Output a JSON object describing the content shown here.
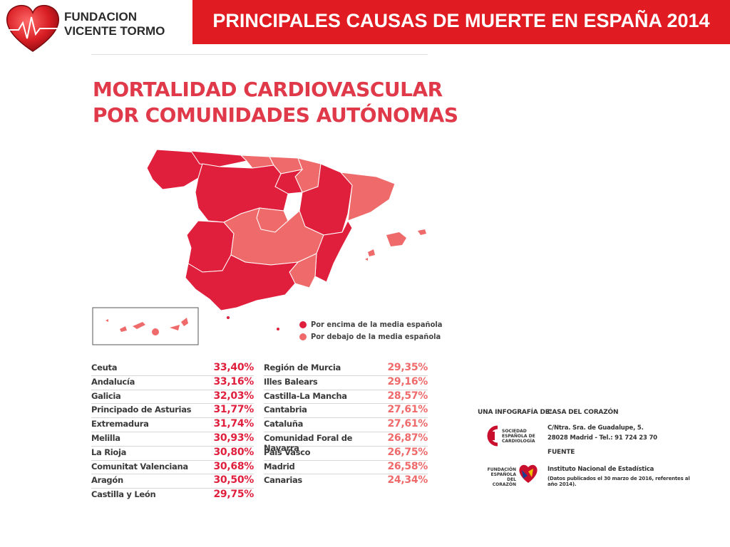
{
  "header": {
    "logo_line1": "FUNDACION",
    "logo_line2": "VICENTE TORMO",
    "title": "PRINCIPALES CAUSAS DE MUERTE EN ESPAÑA 2014"
  },
  "infographic": {
    "title_line1": "MORTALIDAD CARDIOVASCULAR",
    "title_line2": "POR COMUNIDADES AUTÓNOMAS",
    "legend": {
      "above": "Por encima de la media española",
      "below": "Por debajo de la media española"
    },
    "colors": {
      "above": "#e01f3d",
      "below": "#ef6a6a"
    },
    "table_left": [
      {
        "name": "Ceuta",
        "value": "33,40%",
        "status": "above"
      },
      {
        "name": "Andalucía",
        "value": "33,16%",
        "status": "above"
      },
      {
        "name": "Galicia",
        "value": "32,03%",
        "status": "above"
      },
      {
        "name": "Principado de Asturias",
        "value": "31,77%",
        "status": "above"
      },
      {
        "name": "Extremadura",
        "value": "31,74%",
        "status": "above"
      },
      {
        "name": "Melilla",
        "value": "30,93%",
        "status": "above"
      },
      {
        "name": "La Rioja",
        "value": "30,80%",
        "status": "above"
      },
      {
        "name": "Comunitat Valenciana",
        "value": "30,68%",
        "status": "above"
      },
      {
        "name": "Aragón",
        "value": "30,50%",
        "status": "above"
      },
      {
        "name": "Castilla y León",
        "value": "29,75%",
        "status": "above"
      }
    ],
    "table_right": [
      {
        "name": "Región de Murcia",
        "value": "29,35%",
        "status": "below"
      },
      {
        "name": "Illes Balears",
        "value": "29,16%",
        "status": "below"
      },
      {
        "name": "Castilla-La Mancha",
        "value": "28,57%",
        "status": "below"
      },
      {
        "name": "Cantabria",
        "value": "27,61%",
        "status": "below"
      },
      {
        "name": "Cataluña",
        "value": "27,61%",
        "status": "below"
      },
      {
        "name": "Comunidad Foral de Navarra",
        "value": "26,87%",
        "status": "below"
      },
      {
        "name": "País Vasco",
        "value": "26,75%",
        "status": "below"
      },
      {
        "name": "Madrid",
        "value": "26,58%",
        "status": "below"
      },
      {
        "name": "Canarias",
        "value": "24,34%",
        "status": "below"
      }
    ]
  },
  "credits": {
    "infografia": "UNA INFOGRAFÍA DE:",
    "casa": "CASA DEL CORAZÓN",
    "address1": "C/Ntra. Sra. de Guadalupe, 5.",
    "address2": "28028 Madrid - Tel.: 91 724 23 70",
    "fuente": "FUENTE",
    "ine": "Instituto Nacional de Estadística",
    "note": "(Datos publicados el 30 marzo de 2016, referentes al año 2014).",
    "sec_line1": "SOCIEDAD",
    "sec_line2": "ESPAÑOLA DE",
    "sec_line3": "CARDIOLOGÍA",
    "fec_line1": "FUNDACIÓN",
    "fec_line2": "ESPAÑOLA",
    "fec_line3": "DEL CORAZÓN"
  }
}
